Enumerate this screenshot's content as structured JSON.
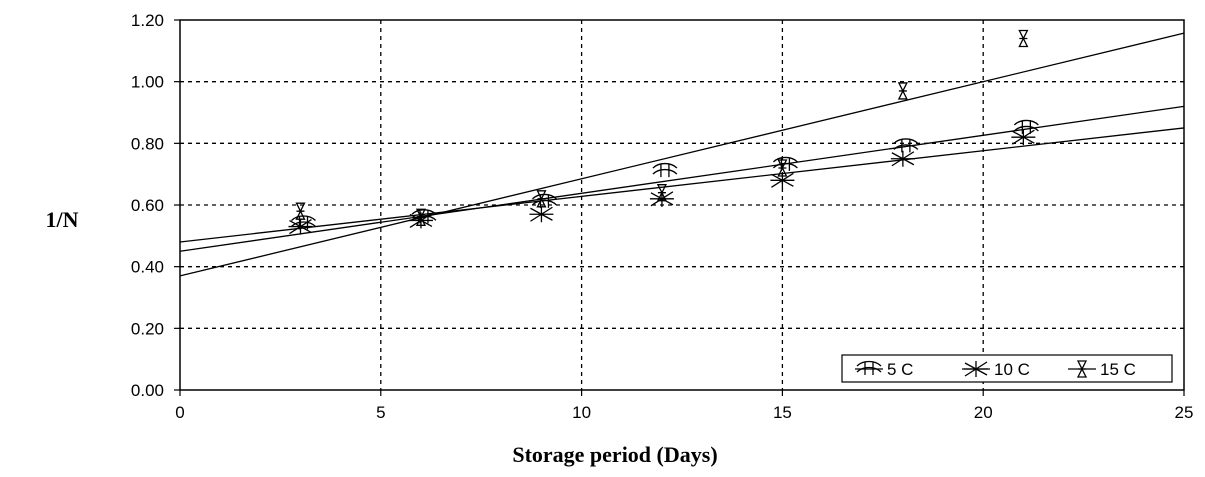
{
  "chart_data": {
    "type": "scatter",
    "title": "",
    "xlabel": "Storage period (Days)",
    "ylabel": "1/N",
    "xlim": [
      0,
      25
    ],
    "ylim": [
      0,
      1.2
    ],
    "xticks": [
      "0",
      "5",
      "10",
      "15",
      "20",
      "25"
    ],
    "yticks": [
      "0.00",
      "0.20",
      "0.40",
      "0.60",
      "0.80",
      "1.00",
      "1.20"
    ],
    "grid": true,
    "legend_position": "bottom-right",
    "series": [
      {
        "name": "5 C",
        "marker": "curl",
        "x": [
          3,
          6,
          9,
          12,
          15,
          18,
          21
        ],
        "y": [
          0.54,
          0.56,
          0.61,
          0.71,
          0.73,
          0.79,
          0.85
        ],
        "fit": {
          "intercept": 0.45,
          "slope": 0.0188
        }
      },
      {
        "name": "10 C",
        "marker": "star",
        "x": [
          3,
          6,
          9,
          12,
          15,
          18,
          21
        ],
        "y": [
          0.53,
          0.55,
          0.57,
          0.62,
          0.68,
          0.75,
          0.82
        ],
        "fit": {
          "intercept": 0.48,
          "slope": 0.0148
        }
      },
      {
        "name": "15 C",
        "marker": "hourglass",
        "x": [
          3,
          6,
          9,
          12,
          15,
          18,
          21
        ],
        "y": [
          0.58,
          0.56,
          0.62,
          0.64,
          0.72,
          0.97,
          1.14
        ],
        "fit": {
          "intercept": 0.37,
          "slope": 0.0315
        }
      }
    ]
  }
}
